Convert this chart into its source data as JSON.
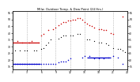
{
  "title": "Milw. Outdoor Temp. & Dew Point (24 Hrs.)",
  "background_color": "#ffffff",
  "grid_color": "#999999",
  "temp_color": "#cc0000",
  "dew_color": "#0000cc",
  "dot_color": "#000000",
  "ylim": [
    13,
    56
  ],
  "xlim": [
    0,
    24
  ],
  "yticks_left": [
    15,
    20,
    25,
    30,
    35,
    40,
    45,
    50,
    55
  ],
  "yticks_right": [
    15,
    20,
    25,
    30,
    35,
    40,
    45,
    50,
    55
  ],
  "xticks": [
    0,
    3,
    6,
    9,
    12,
    15,
    18,
    21,
    24
  ],
  "xtick_labels": [
    "0",
    "3",
    "6",
    "9",
    "12",
    "15",
    "18",
    "21",
    "24"
  ],
  "temp_x": [
    0.0,
    1.0,
    2.0,
    3.5,
    4.0,
    5.5,
    6.0,
    6.5,
    7.5,
    8.5,
    9.0,
    9.5,
    10.0,
    10.5,
    11.0,
    11.5,
    12.0,
    12.5,
    13.0,
    13.5,
    14.0,
    14.5,
    15.0,
    15.5,
    16.0,
    16.5,
    17.0,
    18.0,
    18.5,
    19.0,
    19.5,
    20.5,
    21.0,
    23.0
  ],
  "temp_y": [
    33,
    34,
    33,
    33,
    34,
    33,
    38,
    39,
    42,
    43,
    44,
    46,
    47,
    48,
    48,
    49,
    49,
    50,
    50,
    51,
    51,
    50,
    48,
    47,
    46,
    45,
    44,
    43,
    43,
    42,
    42,
    40,
    39,
    52
  ],
  "dew_x": [
    0.0,
    0.5,
    1.0,
    1.5,
    2.0,
    2.5,
    3.0,
    3.5,
    4.0,
    4.5,
    5.0,
    5.5,
    6.0,
    6.5,
    7.0,
    7.5,
    8.0,
    8.5,
    9.0,
    9.5,
    10.0,
    10.5,
    11.0,
    11.5,
    12.0,
    14.5,
    15.0,
    16.0,
    17.0,
    18.0,
    19.0,
    20.0,
    21.0,
    22.0,
    23.0
  ],
  "dew_y": [
    17,
    17,
    17,
    17,
    17,
    17,
    17,
    17,
    17,
    17,
    17,
    17,
    17,
    17,
    17,
    17,
    17,
    17,
    17,
    18,
    19,
    19,
    19,
    20,
    21,
    22,
    23,
    23,
    21,
    21,
    21,
    22,
    23,
    22,
    17
  ],
  "black_x": [
    0.5,
    1.5,
    2.5,
    3.0,
    4.5,
    5.0,
    6.0,
    6.5,
    7.0,
    7.5,
    8.0,
    9.5,
    10.0,
    10.5,
    11.0,
    12.0,
    12.5,
    13.5,
    14.0,
    15.5,
    16.0,
    17.0,
    18.0,
    18.5,
    19.5,
    20.0,
    21.0,
    22.0,
    22.5,
    23.0,
    23.5
  ],
  "black_y": [
    27,
    27,
    27,
    27,
    27,
    27,
    28,
    29,
    31,
    33,
    35,
    36,
    37,
    38,
    38,
    38,
    38,
    39,
    39,
    35,
    35,
    34,
    33,
    33,
    32,
    31,
    29,
    28,
    28,
    27,
    26
  ],
  "red_hline_x": [
    0,
    5.5
  ],
  "red_hline_y": 33,
  "blue_hline1_x": [
    0,
    5.8
  ],
  "blue_hline1_y": 17,
  "blue_hline2_x": [
    15.5,
    20.5
  ],
  "blue_hline2_y": 22
}
